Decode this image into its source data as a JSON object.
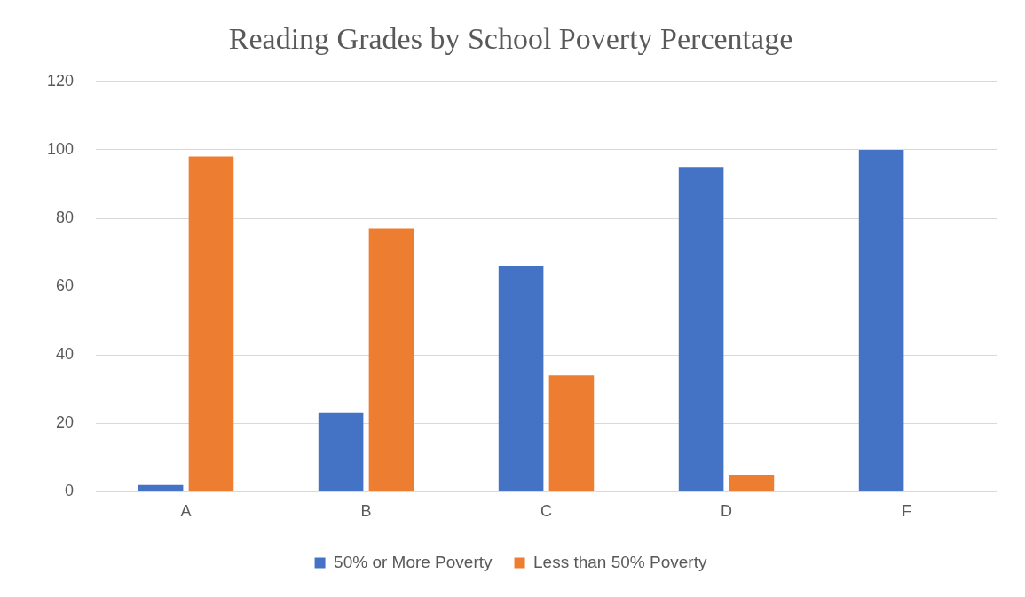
{
  "chart_data": {
    "type": "bar",
    "title": "Reading Grades by School Poverty Percentage",
    "categories": [
      "A",
      "B",
      "C",
      "D",
      "F"
    ],
    "series": [
      {
        "name": "50% or More Poverty",
        "color": "#4472c4",
        "values": [
          2,
          23,
          66,
          95,
          100
        ]
      },
      {
        "name": "Less than 50% Poverty",
        "color": "#ed7d31",
        "values": [
          98,
          77,
          34,
          5,
          0
        ]
      }
    ],
    "ylim": [
      0,
      120
    ],
    "yticks": [
      0,
      20,
      40,
      60,
      80,
      100,
      120
    ],
    "grid": "y",
    "legend": "bottom"
  }
}
